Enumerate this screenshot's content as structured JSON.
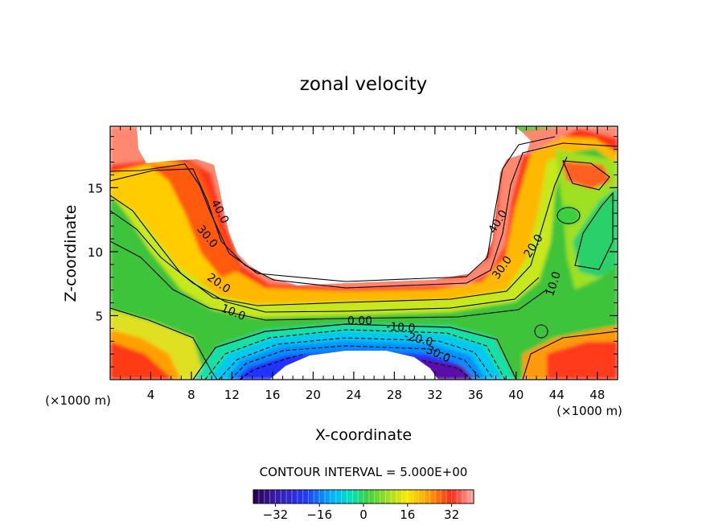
{
  "chart_data": {
    "type": "heatmap",
    "subtype": "filled-contour",
    "title": "zonal velocity",
    "xlabel": "X-coordinate",
    "ylabel": "Z-coordinate",
    "x_unit_note": "(×1000 m)",
    "y_unit_note": "(×1000 m)",
    "xlim": [
      0,
      50
    ],
    "ylim": [
      0,
      19.8
    ],
    "x_ticks": [
      {
        "v": 4,
        "label": "4"
      },
      {
        "v": 8,
        "label": "8"
      },
      {
        "v": 12,
        "label": "12"
      },
      {
        "v": 16,
        "label": "16"
      },
      {
        "v": 20,
        "label": "20"
      },
      {
        "v": 24,
        "label": "24"
      },
      {
        "v": 28,
        "label": "28"
      },
      {
        "v": 32,
        "label": "32"
      },
      {
        "v": 36,
        "label": "36"
      },
      {
        "v": 40,
        "label": "40"
      },
      {
        "v": 44,
        "label": "44"
      },
      {
        "v": 48,
        "label": "48"
      }
    ],
    "y_ticks": [
      {
        "v": 5,
        "label": "5"
      },
      {
        "v": 10,
        "label": "10"
      },
      {
        "v": 15,
        "label": "15"
      }
    ],
    "contour_interval_text": "CONTOUR INTERVAL = 5.000E+00",
    "contour_interval": 5.0,
    "color_range": [
      -40,
      40
    ],
    "colorbar_ticks": [
      {
        "v": -32,
        "label": "−32"
      },
      {
        "v": -16,
        "label": "−16"
      },
      {
        "v": 0,
        "label": "0"
      },
      {
        "v": 16,
        "label": "16"
      },
      {
        "v": 32,
        "label": "32"
      }
    ],
    "contour_labels": [
      {
        "text": "40.0",
        "x": 10.5,
        "z": 13.0,
        "angle": 62
      },
      {
        "text": "30.0",
        "x": 9.3,
        "z": 11.0,
        "angle": 50
      },
      {
        "text": "20.0",
        "x": 10.5,
        "z": 7.3,
        "angle": 35
      },
      {
        "text": "10.0",
        "x": 12.0,
        "z": 5.0,
        "angle": 22
      },
      {
        "text": "0.00",
        "x": 24.6,
        "z": 4.3,
        "angle": 0
      },
      {
        "text": "-10.0",
        "x": 28.6,
        "z": 3.8,
        "angle": 4
      },
      {
        "text": "-20.0",
        "x": 30.3,
        "z": 2.9,
        "angle": 14
      },
      {
        "text": "-30.0",
        "x": 32.0,
        "z": 1.8,
        "angle": 24
      },
      {
        "text": "40.0",
        "x": 38.5,
        "z": 12.2,
        "angle": -58
      },
      {
        "text": "30.0",
        "x": 38.9,
        "z": 8.6,
        "angle": -55
      },
      {
        "text": "20.0",
        "x": 42.0,
        "z": 10.3,
        "angle": -58
      },
      {
        "text": "10.0",
        "x": 44.0,
        "z": 7.4,
        "angle": -72
      }
    ]
  }
}
